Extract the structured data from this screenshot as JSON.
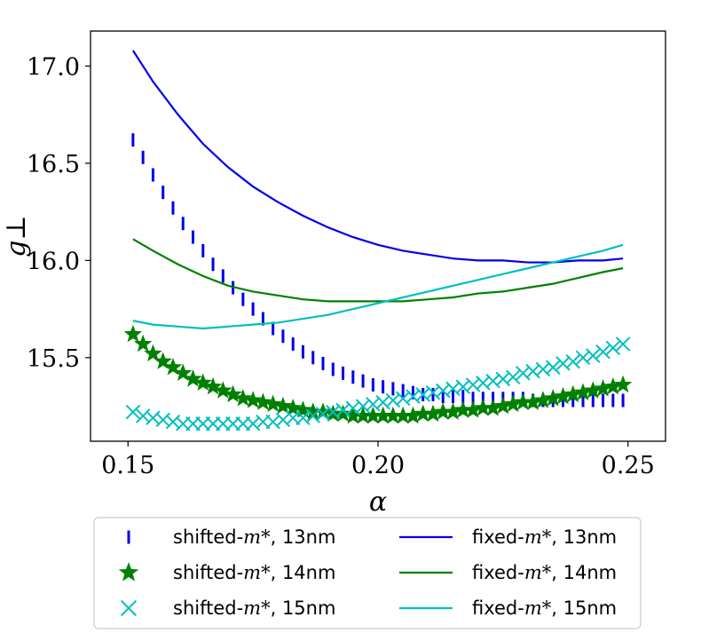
{
  "chart_data": {
    "type": "line",
    "title": "",
    "xlabel": "α",
    "ylabel": "g⊥",
    "xlim": [
      0.1425,
      0.2575
    ],
    "ylim": [
      15.07,
      17.18
    ],
    "xticks": [
      0.15,
      0.2,
      0.25
    ],
    "xtick_labels": [
      "0.15",
      "0.20",
      "0.25"
    ],
    "yticks": [
      15.5,
      16.0,
      16.5,
      17.0
    ],
    "ytick_labels": [
      "15.5",
      "16.0",
      "16.5",
      "17.0"
    ],
    "grid": false,
    "legend_placement": "below",
    "series": [
      {
        "name_prefix": "shifted-",
        "name_math": "m*",
        "name_suffix": ", 13nm",
        "style": "markers",
        "marker": "vline",
        "color": "#0000ee",
        "x": [
          0.151,
          0.153,
          0.155,
          0.157,
          0.159,
          0.161,
          0.163,
          0.165,
          0.167,
          0.169,
          0.171,
          0.173,
          0.175,
          0.177,
          0.179,
          0.181,
          0.183,
          0.185,
          0.187,
          0.189,
          0.191,
          0.193,
          0.195,
          0.197,
          0.199,
          0.201,
          0.203,
          0.205,
          0.207,
          0.209,
          0.211,
          0.213,
          0.215,
          0.217,
          0.219,
          0.221,
          0.223,
          0.225,
          0.227,
          0.229,
          0.231,
          0.233,
          0.235,
          0.237,
          0.239,
          0.241,
          0.243,
          0.245,
          0.247,
          0.249
        ],
        "y": [
          16.62,
          16.53,
          16.44,
          16.35,
          16.27,
          16.19,
          16.12,
          16.05,
          15.98,
          15.92,
          15.86,
          15.8,
          15.75,
          15.7,
          15.65,
          15.61,
          15.57,
          15.53,
          15.5,
          15.47,
          15.44,
          15.42,
          15.4,
          15.38,
          15.36,
          15.35,
          15.34,
          15.33,
          15.32,
          15.31,
          15.31,
          15.3,
          15.3,
          15.3,
          15.29,
          15.29,
          15.29,
          15.29,
          15.29,
          15.29,
          15.28,
          15.28,
          15.28,
          15.28,
          15.28,
          15.28,
          15.28,
          15.28,
          15.28,
          15.28
        ]
      },
      {
        "name_prefix": "shifted-",
        "name_math": "m*",
        "name_suffix": ", 14nm",
        "style": "markers",
        "marker": "star",
        "color": "#008000",
        "x": [
          0.151,
          0.153,
          0.155,
          0.157,
          0.159,
          0.161,
          0.163,
          0.165,
          0.167,
          0.169,
          0.171,
          0.173,
          0.175,
          0.177,
          0.179,
          0.181,
          0.183,
          0.185,
          0.187,
          0.189,
          0.191,
          0.193,
          0.195,
          0.197,
          0.199,
          0.201,
          0.203,
          0.205,
          0.207,
          0.209,
          0.211,
          0.213,
          0.215,
          0.217,
          0.219,
          0.221,
          0.223,
          0.225,
          0.227,
          0.229,
          0.231,
          0.233,
          0.235,
          0.237,
          0.239,
          0.241,
          0.243,
          0.245,
          0.247,
          0.249
        ],
        "y": [
          15.62,
          15.57,
          15.52,
          15.48,
          15.45,
          15.42,
          15.39,
          15.37,
          15.35,
          15.33,
          15.31,
          15.29,
          15.28,
          15.27,
          15.26,
          15.25,
          15.24,
          15.23,
          15.22,
          15.22,
          15.21,
          15.21,
          15.2,
          15.2,
          15.2,
          15.2,
          15.2,
          15.2,
          15.2,
          15.21,
          15.21,
          15.22,
          15.22,
          15.23,
          15.23,
          15.24,
          15.24,
          15.25,
          15.26,
          15.27,
          15.27,
          15.28,
          15.29,
          15.3,
          15.31,
          15.32,
          15.33,
          15.34,
          15.35,
          15.36
        ]
      },
      {
        "name_prefix": "shifted-",
        "name_math": "m*",
        "name_suffix": ", 15nm",
        "style": "markers",
        "marker": "x",
        "color": "#00bfbf",
        "x": [
          0.151,
          0.153,
          0.155,
          0.157,
          0.159,
          0.161,
          0.163,
          0.165,
          0.167,
          0.169,
          0.171,
          0.173,
          0.175,
          0.177,
          0.179,
          0.181,
          0.183,
          0.185,
          0.187,
          0.189,
          0.191,
          0.193,
          0.195,
          0.197,
          0.199,
          0.201,
          0.203,
          0.205,
          0.207,
          0.209,
          0.211,
          0.213,
          0.215,
          0.217,
          0.219,
          0.221,
          0.223,
          0.225,
          0.227,
          0.229,
          0.231,
          0.233,
          0.235,
          0.237,
          0.239,
          0.241,
          0.243,
          0.245,
          0.247,
          0.249
        ],
        "y": [
          15.22,
          15.2,
          15.19,
          15.18,
          15.17,
          15.16,
          15.16,
          15.16,
          15.16,
          15.16,
          15.16,
          15.16,
          15.16,
          15.17,
          15.17,
          15.18,
          15.19,
          15.19,
          15.2,
          15.21,
          15.22,
          15.23,
          15.24,
          15.25,
          15.26,
          15.27,
          15.28,
          15.29,
          15.3,
          15.31,
          15.32,
          15.33,
          15.34,
          15.35,
          15.36,
          15.37,
          15.38,
          15.39,
          15.4,
          15.42,
          15.43,
          15.44,
          15.45,
          15.47,
          15.48,
          15.5,
          15.51,
          15.53,
          15.55,
          15.57
        ]
      },
      {
        "name_prefix": "fixed-",
        "name_math": "m*",
        "name_suffix": ", 13nm",
        "style": "line",
        "color": "#0000ee",
        "x": [
          0.151,
          0.155,
          0.16,
          0.165,
          0.17,
          0.175,
          0.18,
          0.185,
          0.19,
          0.195,
          0.2,
          0.205,
          0.21,
          0.215,
          0.22,
          0.225,
          0.23,
          0.235,
          0.24,
          0.245,
          0.249
        ],
        "y": [
          17.08,
          16.92,
          16.75,
          16.6,
          16.48,
          16.38,
          16.3,
          16.23,
          16.17,
          16.12,
          16.08,
          16.05,
          16.03,
          16.01,
          16.0,
          16.0,
          15.99,
          15.99,
          16.0,
          16.0,
          16.01
        ]
      },
      {
        "name_prefix": "fixed-",
        "name_math": "m*",
        "name_suffix": ", 14nm",
        "style": "line",
        "color": "#008000",
        "x": [
          0.151,
          0.155,
          0.16,
          0.165,
          0.17,
          0.175,
          0.18,
          0.185,
          0.19,
          0.195,
          0.2,
          0.205,
          0.21,
          0.215,
          0.22,
          0.225,
          0.23,
          0.235,
          0.24,
          0.245,
          0.249
        ],
        "y": [
          16.11,
          16.05,
          15.98,
          15.92,
          15.87,
          15.84,
          15.82,
          15.8,
          15.79,
          15.79,
          15.79,
          15.79,
          15.8,
          15.81,
          15.83,
          15.84,
          15.86,
          15.88,
          15.91,
          15.94,
          15.96
        ]
      },
      {
        "name_prefix": "fixed-",
        "name_math": "m*",
        "name_suffix": ", 15nm",
        "style": "line",
        "color": "#00bfbf",
        "x": [
          0.151,
          0.155,
          0.16,
          0.165,
          0.17,
          0.175,
          0.18,
          0.185,
          0.19,
          0.195,
          0.2,
          0.205,
          0.21,
          0.215,
          0.22,
          0.225,
          0.23,
          0.235,
          0.24,
          0.245,
          0.249
        ],
        "y": [
          15.69,
          15.67,
          15.66,
          15.65,
          15.66,
          15.67,
          15.68,
          15.7,
          15.72,
          15.75,
          15.78,
          15.81,
          15.84,
          15.87,
          15.9,
          15.93,
          15.96,
          15.99,
          16.02,
          16.05,
          16.08
        ]
      }
    ]
  }
}
